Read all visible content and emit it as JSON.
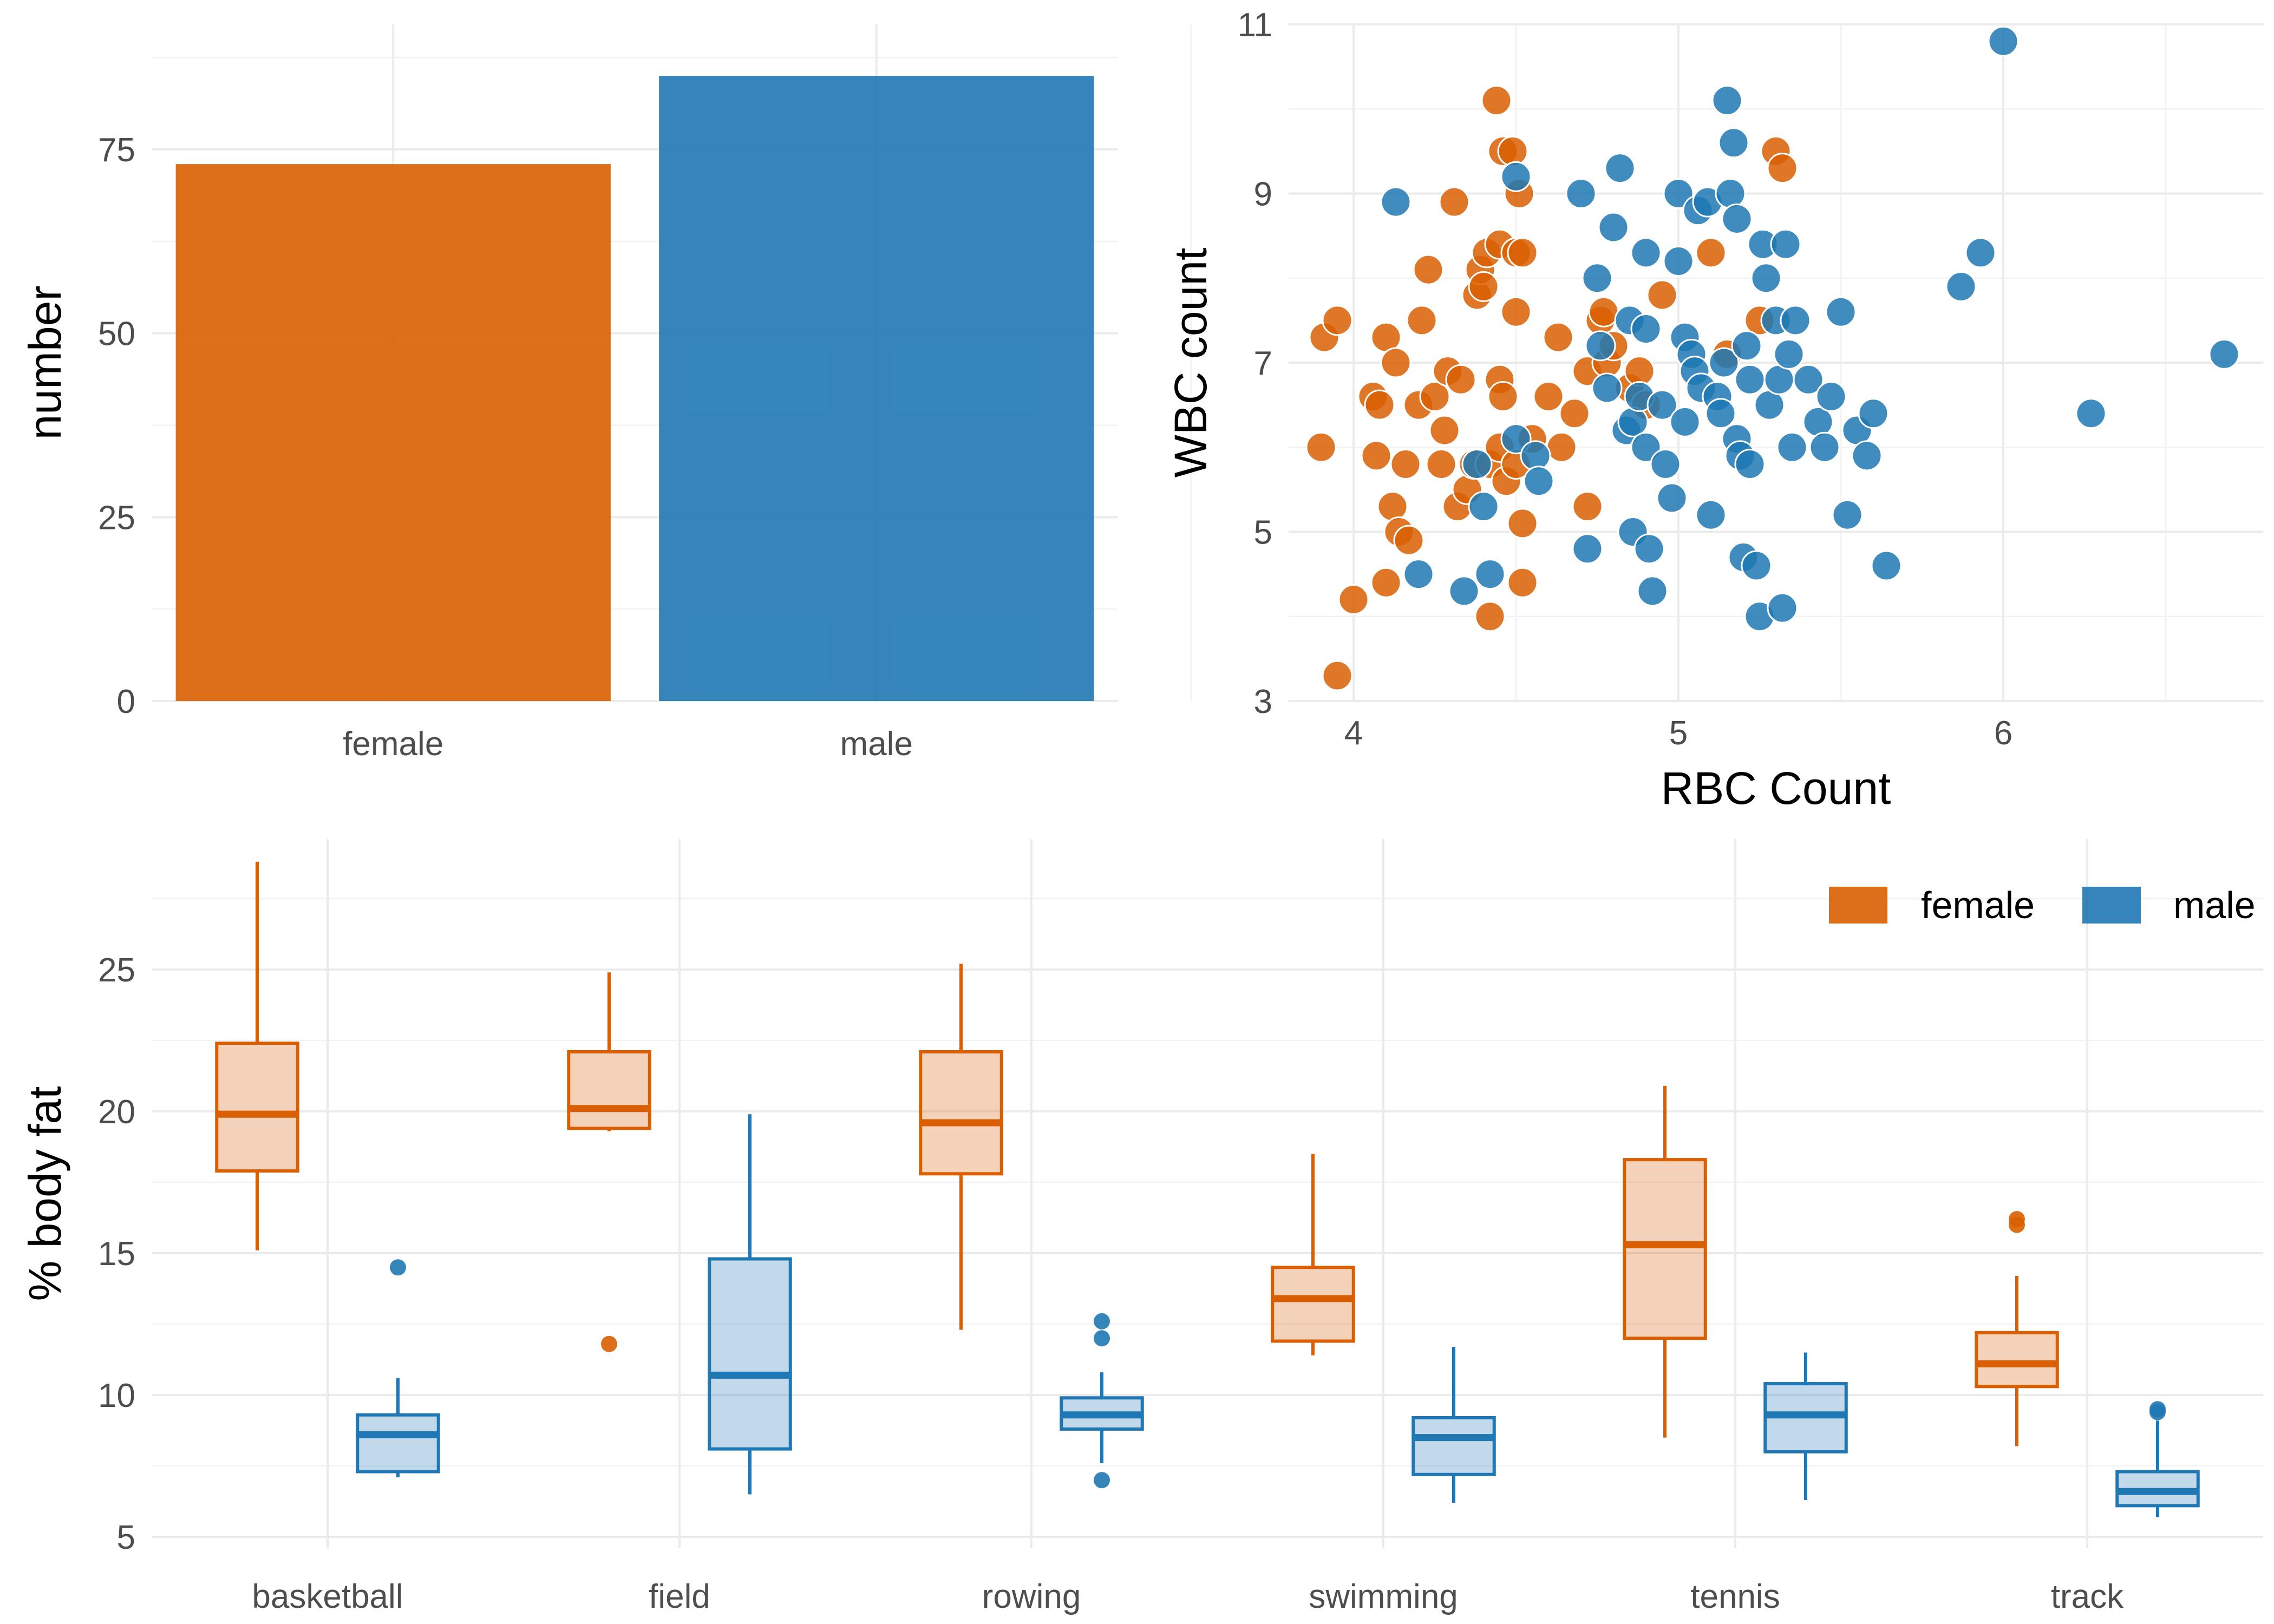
{
  "colors": {
    "female": "#D95F02",
    "male": "#1F78B4",
    "grid": "#EBEBEB"
  },
  "chart_data": [
    {
      "type": "bar",
      "title": "",
      "xlabel": "",
      "ylabel": "number",
      "categories": [
        "female",
        "male"
      ],
      "values": [
        73,
        85
      ],
      "ylim": [
        0,
        92
      ],
      "yticks": [
        0,
        25,
        50,
        75
      ],
      "grid": true
    },
    {
      "type": "scatter",
      "title": "",
      "xlabel": "RBC Count",
      "ylabel": "WBC count",
      "xlim": [
        3.8,
        6.8
      ],
      "ylim": [
        3,
        11
      ],
      "xticks": [
        4,
        5,
        6
      ],
      "yticks": [
        3,
        5,
        7,
        9,
        11
      ],
      "grid": true,
      "series": [
        {
          "name": "female",
          "points": [
            [
              3.91,
              7.3
            ],
            [
              3.95,
              7.5
            ],
            [
              3.9,
              6.0
            ],
            [
              3.95,
              3.3
            ],
            [
              4.0,
              4.2
            ],
            [
              4.06,
              6.6
            ],
            [
              4.07,
              5.9
            ],
            [
              4.08,
              6.5
            ],
            [
              4.1,
              7.3
            ],
            [
              4.1,
              4.4
            ],
            [
              4.12,
              5.3
            ],
            [
              4.13,
              7.0
            ],
            [
              4.14,
              5.0
            ],
            [
              4.17,
              4.9
            ],
            [
              4.16,
              5.8
            ],
            [
              4.21,
              7.5
            ],
            [
              4.2,
              6.5
            ],
            [
              4.23,
              8.1
            ],
            [
              4.25,
              6.6
            ],
            [
              4.27,
              5.8
            ],
            [
              4.28,
              6.2
            ],
            [
              4.29,
              6.9
            ],
            [
              4.31,
              8.9
            ],
            [
              4.32,
              5.3
            ],
            [
              4.33,
              6.8
            ],
            [
              4.35,
              5.5
            ],
            [
              4.37,
              5.8
            ],
            [
              4.38,
              7.8
            ],
            [
              4.39,
              8.1
            ],
            [
              4.4,
              7.9
            ],
            [
              4.41,
              8.3
            ],
            [
              4.42,
              5.8
            ],
            [
              4.42,
              4.0
            ],
            [
              4.44,
              10.1
            ],
            [
              4.45,
              8.4
            ],
            [
              4.46,
              9.5
            ],
            [
              4.45,
              6.0
            ],
            [
              4.45,
              6.8
            ],
            [
              4.46,
              6.6
            ],
            [
              4.47,
              5.6
            ],
            [
              4.49,
              9.5
            ],
            [
              4.5,
              8.3
            ],
            [
              4.5,
              7.6
            ],
            [
              4.51,
              9.0
            ],
            [
              4.52,
              8.3
            ],
            [
              4.52,
              5.1
            ],
            [
              4.52,
              4.4
            ],
            [
              4.5,
              5.8
            ],
            [
              4.55,
              6.1
            ],
            [
              4.6,
              6.6
            ],
            [
              4.63,
              7.3
            ],
            [
              4.64,
              6.0
            ],
            [
              4.68,
              6.4
            ],
            [
              4.72,
              6.9
            ],
            [
              4.72,
              5.3
            ],
            [
              4.76,
              7.5
            ],
            [
              4.77,
              7.6
            ],
            [
              4.78,
              7.0
            ],
            [
              4.8,
              7.2
            ],
            [
              4.85,
              6.7
            ],
            [
              4.88,
              6.9
            ],
            [
              4.9,
              6.5
            ],
            [
              4.95,
              7.8
            ],
            [
              5.1,
              8.3
            ],
            [
              5.15,
              7.1
            ],
            [
              5.25,
              7.5
            ],
            [
              5.3,
              9.5
            ],
            [
              5.32,
              9.3
            ]
          ]
        },
        {
          "name": "male",
          "points": [
            [
              4.13,
              8.9
            ],
            [
              4.2,
              4.5
            ],
            [
              4.34,
              4.3
            ],
            [
              4.38,
              5.8
            ],
            [
              4.4,
              5.3
            ],
            [
              4.42,
              4.5
            ],
            [
              4.5,
              9.2
            ],
            [
              4.5,
              6.1
            ],
            [
              4.56,
              5.9
            ],
            [
              4.57,
              5.6
            ],
            [
              4.7,
              9.0
            ],
            [
              4.72,
              4.8
            ],
            [
              4.75,
              8.0
            ],
            [
              4.76,
              7.2
            ],
            [
              4.78,
              6.7
            ],
            [
              4.8,
              8.6
            ],
            [
              4.82,
              9.3
            ],
            [
              4.84,
              6.2
            ],
            [
              4.85,
              7.5
            ],
            [
              4.86,
              6.3
            ],
            [
              4.86,
              5.0
            ],
            [
              4.88,
              6.6
            ],
            [
              4.9,
              8.3
            ],
            [
              4.9,
              7.4
            ],
            [
              4.9,
              6.0
            ],
            [
              4.91,
              4.8
            ],
            [
              4.92,
              4.3
            ],
            [
              4.95,
              6.5
            ],
            [
              4.96,
              5.8
            ],
            [
              4.98,
              5.4
            ],
            [
              5.0,
              9.0
            ],
            [
              5.0,
              8.2
            ],
            [
              5.02,
              7.3
            ],
            [
              5.02,
              6.3
            ],
            [
              5.04,
              7.1
            ],
            [
              5.05,
              6.9
            ],
            [
              5.07,
              6.7
            ],
            [
              5.06,
              8.8
            ],
            [
              5.09,
              8.9
            ],
            [
              5.1,
              5.2
            ],
            [
              5.12,
              6.6
            ],
            [
              5.13,
              6.4
            ],
            [
              5.14,
              7.0
            ],
            [
              5.15,
              10.1
            ],
            [
              5.16,
              9.0
            ],
            [
              5.17,
              9.6
            ],
            [
              5.18,
              8.7
            ],
            [
              5.18,
              6.1
            ],
            [
              5.19,
              5.9
            ],
            [
              5.2,
              4.7
            ],
            [
              5.21,
              7.2
            ],
            [
              5.22,
              6.8
            ],
            [
              5.22,
              5.8
            ],
            [
              5.24,
              4.6
            ],
            [
              5.25,
              4.0
            ],
            [
              5.26,
              8.4
            ],
            [
              5.27,
              8.0
            ],
            [
              5.28,
              6.5
            ],
            [
              5.3,
              7.5
            ],
            [
              5.31,
              6.8
            ],
            [
              5.32,
              4.1
            ],
            [
              5.33,
              8.4
            ],
            [
              5.34,
              7.1
            ],
            [
              5.35,
              6.0
            ],
            [
              5.36,
              7.5
            ],
            [
              5.4,
              6.8
            ],
            [
              5.43,
              6.3
            ],
            [
              5.45,
              6.0
            ],
            [
              5.47,
              6.6
            ],
            [
              5.5,
              7.6
            ],
            [
              5.52,
              5.2
            ],
            [
              5.55,
              6.2
            ],
            [
              5.58,
              5.9
            ],
            [
              5.6,
              6.4
            ],
            [
              5.64,
              4.6
            ],
            [
              5.87,
              7.9
            ],
            [
              5.93,
              8.3
            ],
            [
              6.0,
              10.8
            ],
            [
              6.27,
              6.4
            ],
            [
              6.68,
              7.1
            ]
          ]
        }
      ]
    },
    {
      "type": "box",
      "title": "",
      "xlabel": "",
      "ylabel": "% body fat",
      "categories": [
        "basketball",
        "field",
        "rowing",
        "swimming",
        "tennis",
        "track"
      ],
      "ylim": [
        4.6,
        29.6
      ],
      "yticks": [
        5,
        10,
        15,
        20,
        25
      ],
      "legend_position": "top-right",
      "grid": true,
      "series": [
        {
          "name": "female",
          "boxes": [
            {
              "min": 15.1,
              "q1": 17.9,
              "median": 19.9,
              "q3": 22.4,
              "max": 28.8,
              "outliers": []
            },
            {
              "min": 19.3,
              "q1": 19.4,
              "median": 20.1,
              "q3": 22.1,
              "max": 24.9,
              "outliers": [
                11.8
              ]
            },
            {
              "min": 12.3,
              "q1": 17.8,
              "median": 19.6,
              "q3": 22.1,
              "max": 25.2,
              "outliers": []
            },
            {
              "min": 11.4,
              "q1": 11.9,
              "median": 13.4,
              "q3": 14.5,
              "max": 18.5,
              "outliers": []
            },
            {
              "min": 8.5,
              "q1": 12.0,
              "median": 15.3,
              "q3": 18.3,
              "max": 20.9,
              "outliers": []
            },
            {
              "min": 8.2,
              "q1": 10.3,
              "median": 11.1,
              "q3": 12.2,
              "max": 14.2,
              "outliers": [
                16.2,
                16.0
              ]
            }
          ]
        },
        {
          "name": "male",
          "boxes": [
            {
              "min": 7.1,
              "q1": 7.3,
              "median": 8.6,
              "q3": 9.3,
              "max": 10.6,
              "outliers": [
                14.5
              ]
            },
            {
              "min": 6.5,
              "q1": 8.1,
              "median": 10.7,
              "q3": 14.8,
              "max": 19.9,
              "outliers": []
            },
            {
              "min": 7.6,
              "q1": 8.8,
              "median": 9.3,
              "q3": 9.9,
              "max": 10.8,
              "outliers": [
                12.6,
                12.0,
                7.0
              ]
            },
            {
              "min": 6.2,
              "q1": 7.2,
              "median": 8.5,
              "q3": 9.2,
              "max": 11.7,
              "outliers": []
            },
            {
              "min": 6.3,
              "q1": 8.0,
              "median": 9.3,
              "q3": 10.4,
              "max": 11.5,
              "outliers": []
            },
            {
              "min": 5.7,
              "q1": 6.1,
              "median": 6.6,
              "q3": 7.3,
              "max": 9.1,
              "outliers": [
                9.5,
                9.4
              ]
            }
          ]
        }
      ],
      "legend": [
        "female",
        "male"
      ]
    }
  ]
}
